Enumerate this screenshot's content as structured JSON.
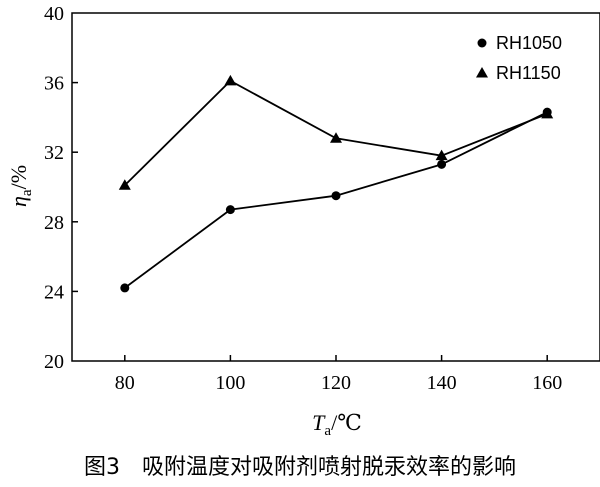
{
  "chart_data": {
    "type": "line",
    "x": [
      80,
      100,
      120,
      140,
      160
    ],
    "series": [
      {
        "name": "RH1050",
        "marker": "circle",
        "values": [
          24.2,
          28.7,
          29.5,
          31.3,
          34.3
        ]
      },
      {
        "name": "RH1150",
        "marker": "triangle",
        "values": [
          30.1,
          36.1,
          32.8,
          31.8,
          34.2
        ]
      }
    ],
    "xticks": [
      "80",
      "100",
      "120",
      "140",
      "160"
    ],
    "yticks": [
      "20",
      "24",
      "28",
      "32",
      "36",
      "40"
    ],
    "xlim": [
      70,
      170
    ],
    "ylim": [
      20,
      40
    ],
    "xlabel": {
      "main": "T",
      "sub": "a",
      "unit": "/℃"
    },
    "ylabel": {
      "main": "η",
      "sub": "a",
      "unit": "/%"
    },
    "legend_position": "top-right",
    "grid": false,
    "caption": "图3　吸附温度对吸附剂喷射脱汞效率的影响",
    "colors": {
      "line": "#000000",
      "background": "#ffffff"
    }
  }
}
